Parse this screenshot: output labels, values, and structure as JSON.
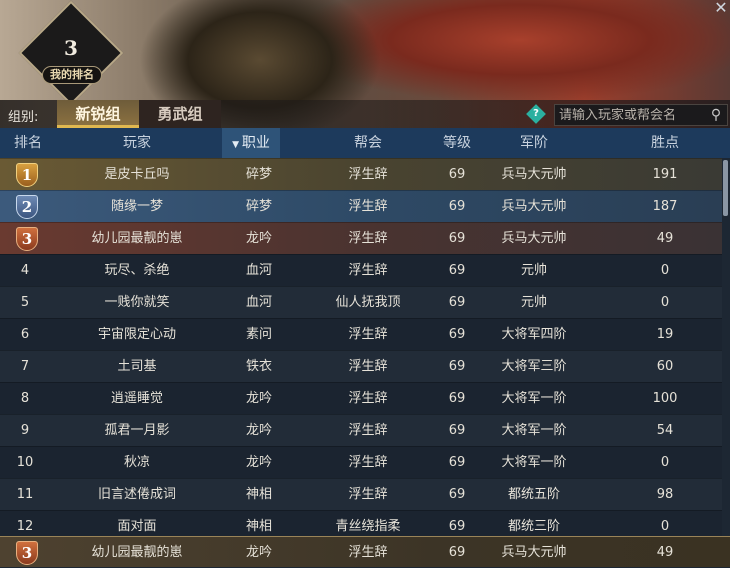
{
  "banner": {
    "my_rank": "3",
    "my_rank_label": "我的排名",
    "close_icon": "close-icon"
  },
  "filter": {
    "group_label": "组别:",
    "tabs": [
      {
        "label": "新锐组",
        "active": true
      },
      {
        "label": "勇武组",
        "active": false
      }
    ],
    "help_icon": "?",
    "search_placeholder": "请输入玩家或帮会名"
  },
  "table": {
    "headers": [
      "排名",
      "玩家",
      "职业",
      "帮会",
      "等级",
      "军阶",
      "胜点"
    ],
    "sorted_column": "职业",
    "rows": [
      {
        "rank": "1",
        "player": "是皮卡丘吗",
        "class": "碎梦",
        "guild": "浮生辞",
        "level": "69",
        "title": "兵马大元帅",
        "points": "191"
      },
      {
        "rank": "2",
        "player": "随缘一梦",
        "class": "碎梦",
        "guild": "浮生辞",
        "level": "69",
        "title": "兵马大元帅",
        "points": "187"
      },
      {
        "rank": "3",
        "player": "幼儿园最靓的崽",
        "class": "龙吟",
        "guild": "浮生辞",
        "level": "69",
        "title": "兵马大元帅",
        "points": "49"
      },
      {
        "rank": "4",
        "player": "玩尽、杀绝",
        "class": "血河",
        "guild": "浮生辞",
        "level": "69",
        "title": "元帅",
        "points": "0"
      },
      {
        "rank": "5",
        "player": "一贱你就笑",
        "class": "血河",
        "guild": "仙人抚我顶",
        "level": "69",
        "title": "元帅",
        "points": "0"
      },
      {
        "rank": "6",
        "player": "宇宙限定心动",
        "class": "素问",
        "guild": "浮生辞",
        "level": "69",
        "title": "大将军四阶",
        "points": "19"
      },
      {
        "rank": "7",
        "player": "土司基",
        "class": "铁衣",
        "guild": "浮生辞",
        "level": "69",
        "title": "大将军三阶",
        "points": "60"
      },
      {
        "rank": "8",
        "player": "逍遥睡觉",
        "class": "龙吟",
        "guild": "浮生辞",
        "level": "69",
        "title": "大将军一阶",
        "points": "100"
      },
      {
        "rank": "9",
        "player": "孤君一月影",
        "class": "龙吟",
        "guild": "浮生辞",
        "level": "69",
        "title": "大将军一阶",
        "points": "54"
      },
      {
        "rank": "10",
        "player": "秋凉",
        "class": "龙吟",
        "guild": "浮生辞",
        "level": "69",
        "title": "大将军一阶",
        "points": "0"
      },
      {
        "rank": "11",
        "player": "旧言述倦成词",
        "class": "神相",
        "guild": "浮生辞",
        "level": "69",
        "title": "都统五阶",
        "points": "98"
      },
      {
        "rank": "12",
        "player": "面对面",
        "class": "神相",
        "guild": "青丝绕指柔",
        "level": "69",
        "title": "都统三阶",
        "points": "0"
      }
    ],
    "my_row": {
      "rank": "3",
      "player": "幼儿园最靓的崽",
      "class": "龙吟",
      "guild": "浮生辞",
      "level": "69",
      "title": "兵马大元帅",
      "points": "49"
    }
  }
}
